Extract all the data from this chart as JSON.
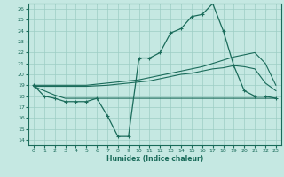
{
  "xlabel": "Humidex (Indice chaleur)",
  "xlim": [
    -0.5,
    23.5
  ],
  "ylim": [
    13.5,
    26.5
  ],
  "xticks": [
    0,
    1,
    2,
    3,
    4,
    5,
    6,
    7,
    8,
    9,
    10,
    11,
    12,
    13,
    14,
    15,
    16,
    17,
    18,
    19,
    20,
    21,
    22,
    23
  ],
  "yticks": [
    14,
    15,
    16,
    17,
    18,
    19,
    20,
    21,
    22,
    23,
    24,
    25,
    26
  ],
  "background_color": "#c5e8e2",
  "grid_color": "#9dcdc5",
  "line_color": "#1a6b5a",
  "line1_x": [
    0,
    1,
    2,
    3,
    4,
    5,
    6,
    7,
    8,
    9,
    10,
    11,
    12,
    13,
    14,
    15,
    16,
    17,
    18,
    19,
    20,
    21,
    22,
    23
  ],
  "line1_y": [
    19,
    18,
    17.8,
    17.5,
    17.5,
    17.5,
    17.8,
    16.2,
    14.3,
    14.3,
    21.5,
    21.5,
    22,
    23.8,
    24.2,
    25.3,
    25.5,
    26.5,
    24.0,
    20.8,
    18.5,
    18,
    18,
    17.8
  ],
  "line2_x": [
    0,
    1,
    2,
    3,
    4,
    5,
    6,
    7,
    8,
    9,
    10,
    11,
    12,
    13,
    14,
    15,
    16,
    17,
    18,
    19,
    20,
    21,
    22,
    23
  ],
  "line2_y": [
    19.0,
    19.0,
    19.0,
    19.0,
    19.0,
    19.0,
    19.1,
    19.2,
    19.3,
    19.4,
    19.5,
    19.7,
    19.9,
    20.1,
    20.3,
    20.5,
    20.7,
    21.0,
    21.3,
    21.6,
    21.8,
    22.0,
    21.0,
    19.0
  ],
  "line3_x": [
    0,
    1,
    2,
    3,
    4,
    5,
    6,
    7,
    8,
    9,
    10,
    11,
    12,
    13,
    14,
    15,
    16,
    17,
    18,
    19,
    20,
    21,
    22,
    23
  ],
  "line3_y": [
    18.9,
    18.9,
    18.9,
    18.9,
    18.9,
    18.9,
    18.95,
    19.0,
    19.1,
    19.2,
    19.3,
    19.4,
    19.6,
    19.8,
    20.0,
    20.1,
    20.3,
    20.5,
    20.6,
    20.8,
    20.7,
    20.5,
    19.2,
    18.5
  ],
  "line4_x": [
    0,
    1,
    2,
    3,
    4,
    5,
    6,
    7,
    8,
    9,
    10,
    11,
    12,
    13,
    14,
    15,
    16,
    17,
    18,
    19,
    20,
    21,
    22,
    23
  ],
  "line4_y": [
    18.9,
    18.5,
    18.1,
    17.8,
    17.8,
    17.8,
    17.8,
    17.8,
    17.8,
    17.8,
    17.8,
    17.8,
    17.8,
    17.8,
    17.8,
    17.8,
    17.8,
    17.8,
    17.8,
    17.8,
    17.8,
    17.8,
    17.8,
    17.8
  ]
}
